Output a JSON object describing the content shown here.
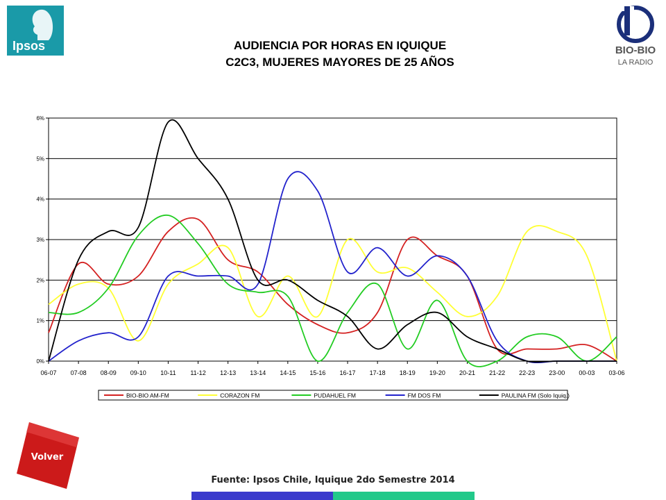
{
  "logos": {
    "left_text": "Ipsos",
    "right_text": "BIO-BIO",
    "right_subtext": "LA RADIO"
  },
  "chart_data": {
    "type": "line",
    "title": "AUDIENCIA POR HORAS EN IQUIQUE",
    "subtitle": "C2C3, MUJERES MAYORES DE 25 AÑOS",
    "xlabel": "",
    "ylabel": "",
    "categories": [
      "06-07",
      "07-08",
      "08-09",
      "09-10",
      "10-11",
      "11-12",
      "12-13",
      "13-14",
      "14-15",
      "15-16",
      "16-17",
      "17-18",
      "18-19",
      "19-20",
      "20-21",
      "21-22",
      "22-23",
      "23-00",
      "00-03",
      "03-06"
    ],
    "y_ticks": [
      "0%",
      "1%",
      "2%",
      "3%",
      "4%",
      "5%",
      "6%"
    ],
    "ylim": [
      0,
      6
    ],
    "grid": "horizontal",
    "legend_position": "bottom",
    "series": [
      {
        "name": "BIO-BIO AM-FM",
        "color": "#d42020",
        "values": [
          0.7,
          2.4,
          1.9,
          2.1,
          3.2,
          3.5,
          2.5,
          2.2,
          1.4,
          0.9,
          0.7,
          1.2,
          3.0,
          2.6,
          2.1,
          0.3,
          0.3,
          0.3,
          0.4,
          0.0
        ]
      },
      {
        "name": "CORAZON FM",
        "color": "#ffff33",
        "values": [
          1.4,
          1.9,
          1.8,
          0.5,
          1.9,
          2.4,
          2.8,
          1.1,
          2.1,
          1.1,
          3.0,
          2.2,
          2.3,
          1.7,
          1.1,
          1.6,
          3.2,
          3.2,
          2.6,
          0.0
        ]
      },
      {
        "name": "PUDAHUEL FM",
        "color": "#22cc22",
        "values": [
          1.2,
          1.2,
          1.8,
          3.1,
          3.6,
          2.9,
          1.9,
          1.7,
          1.6,
          0.0,
          1.2,
          1.9,
          0.3,
          1.5,
          0.0,
          0.0,
          0.6,
          0.6,
          0.0,
          0.6
        ]
      },
      {
        "name": "FM DOS FM",
        "color": "#2222cc",
        "values": [
          0.0,
          0.5,
          0.7,
          0.6,
          2.1,
          2.1,
          2.1,
          1.9,
          4.5,
          4.2,
          2.2,
          2.8,
          2.1,
          2.6,
          2.1,
          0.5,
          0.0,
          0.0,
          0.0,
          0.0
        ]
      },
      {
        "name": "PAULINA FM  (Solo Iquiq.)",
        "color": "#000000",
        "values": [
          0.0,
          2.5,
          3.2,
          3.3,
          5.9,
          5.0,
          4.0,
          2.0,
          2.0,
          1.5,
          1.1,
          0.3,
          0.9,
          1.2,
          0.6,
          0.3,
          0.0,
          0.0,
          0.0,
          0.0
        ]
      }
    ]
  },
  "nav": {
    "volver_label": "Volver"
  },
  "footer": {
    "source": "Fuente: Ipsos Chile, Iquique 2do Semestre 2014",
    "bar_colors": [
      "#3a3acc",
      "#22c98a"
    ]
  }
}
